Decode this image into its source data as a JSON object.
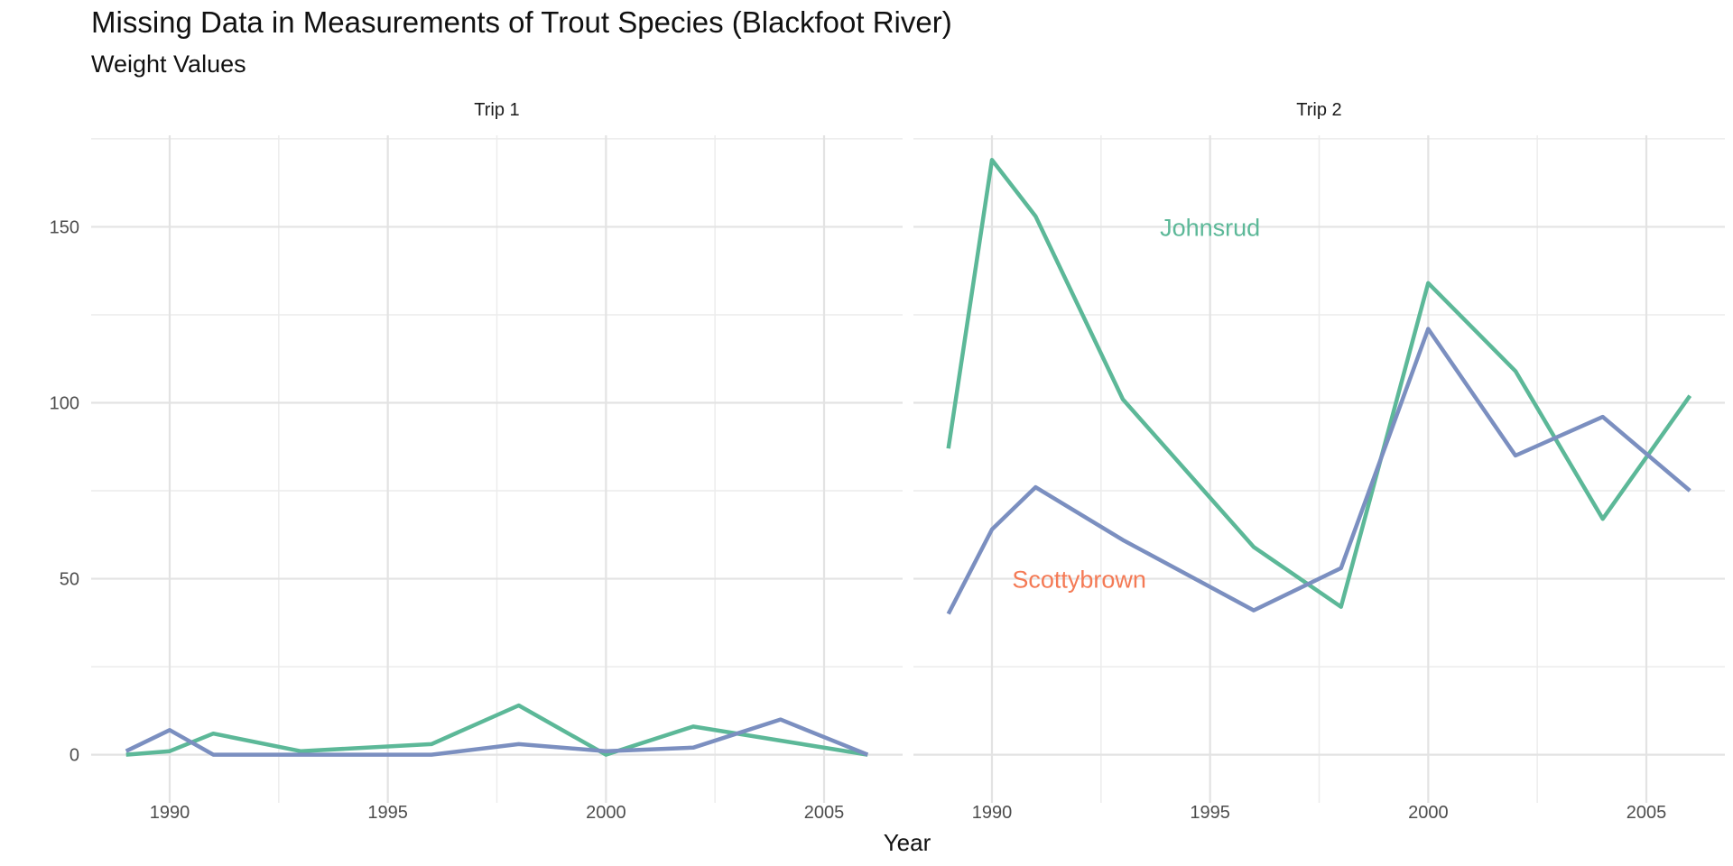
{
  "chart_data": {
    "type": "line",
    "title": "Missing Data in Measurements of Trout Species (Blackfoot River)",
    "subtitle": "Weight Values",
    "xlabel": "Year",
    "ylabel": "",
    "xlim": [
      1988.2,
      2006.8
    ],
    "ylim": [
      -6,
      176
    ],
    "x_ticks": [
      1990,
      1995,
      2000,
      2005
    ],
    "y_ticks": [
      0,
      50,
      100,
      150
    ],
    "x_tick_labels": [
      "1990",
      "1995",
      "2000",
      "2005"
    ],
    "y_tick_labels": [
      "0",
      "50",
      "100",
      "150"
    ],
    "grid": true,
    "legend": "none",
    "colors": {
      "green": "#5cb898",
      "purple": "#7b8fc0",
      "orange": "#f47a55"
    },
    "panels": [
      {
        "label": "Trip 1",
        "series": [
          {
            "color": "#5cb898",
            "points": [
              [
                1989,
                0
              ],
              [
                1990,
                1
              ],
              [
                1991,
                6
              ],
              [
                1993,
                1
              ],
              [
                1996,
                3
              ],
              [
                1998,
                14
              ],
              [
                2000,
                0
              ],
              [
                2002,
                8
              ],
              [
                2004,
                4
              ],
              [
                2006,
                0
              ]
            ]
          },
          {
            "color": "#7b8fc0",
            "points": [
              [
                1989,
                1
              ],
              [
                1990,
                7
              ],
              [
                1991,
                0
              ],
              [
                1993,
                0
              ],
              [
                1996,
                0
              ],
              [
                1998,
                3
              ],
              [
                2000,
                1
              ],
              [
                2002,
                2
              ],
              [
                2004,
                10
              ],
              [
                2006,
                0
              ]
            ]
          }
        ],
        "annotations": []
      },
      {
        "label": "Trip 2",
        "series": [
          {
            "color": "#5cb898",
            "points": [
              [
                1989,
                87
              ],
              [
                1990,
                169
              ],
              [
                1991,
                153
              ],
              [
                1993,
                101
              ],
              [
                1996,
                59
              ],
              [
                1998,
                42
              ],
              [
                2000,
                134
              ],
              [
                2002,
                109
              ],
              [
                2004,
                67
              ],
              [
                2006,
                102
              ]
            ]
          },
          {
            "color": "#7b8fc0",
            "points": [
              [
                1989,
                40
              ],
              [
                1990,
                64
              ],
              [
                1991,
                76
              ],
              [
                1993,
                61
              ],
              [
                1996,
                41
              ],
              [
                1998,
                53
              ],
              [
                2000,
                121
              ],
              [
                2002,
                85
              ],
              [
                2004,
                96
              ],
              [
                2006,
                75
              ]
            ]
          }
        ],
        "annotations": [
          {
            "text": "Johnsrud",
            "x": 1995,
            "y": 150,
            "color": "#5cb898"
          },
          {
            "text": "Scottybrown",
            "x": 1992,
            "y": 50,
            "color": "#f47a55"
          }
        ]
      }
    ]
  }
}
